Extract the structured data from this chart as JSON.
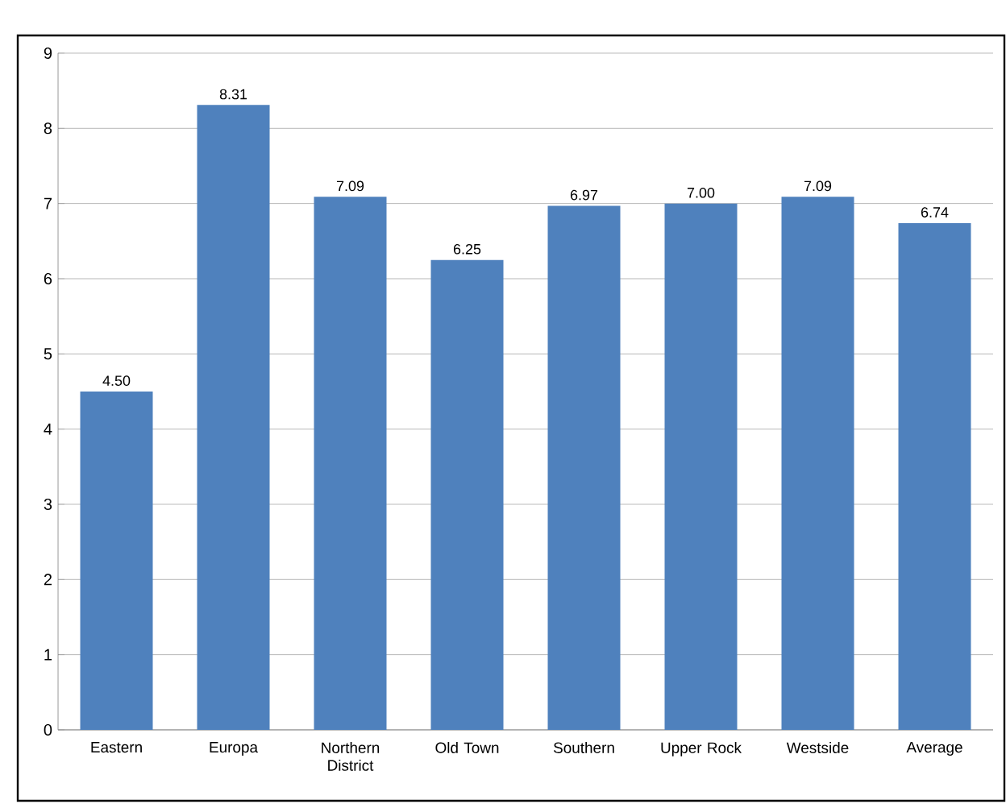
{
  "chart_data": {
    "type": "bar",
    "categories": [
      "Eastern",
      "Europa",
      "Northern District",
      "Old Town",
      "Southern",
      "Upper Rock",
      "Westside",
      "Average"
    ],
    "values": [
      4.5,
      8.31,
      7.09,
      6.25,
      6.97,
      7.0,
      7.09,
      6.74
    ],
    "value_labels": [
      "4.50",
      "8.31",
      "7.09",
      "6.25",
      "6.97",
      "7.00",
      "7.09",
      "6.74"
    ],
    "color": "#4f81bd",
    "ylim": [
      0,
      9
    ],
    "yticks": [
      0,
      1,
      2,
      3,
      4,
      5,
      6,
      7,
      8,
      9
    ],
    "grid": "y"
  }
}
